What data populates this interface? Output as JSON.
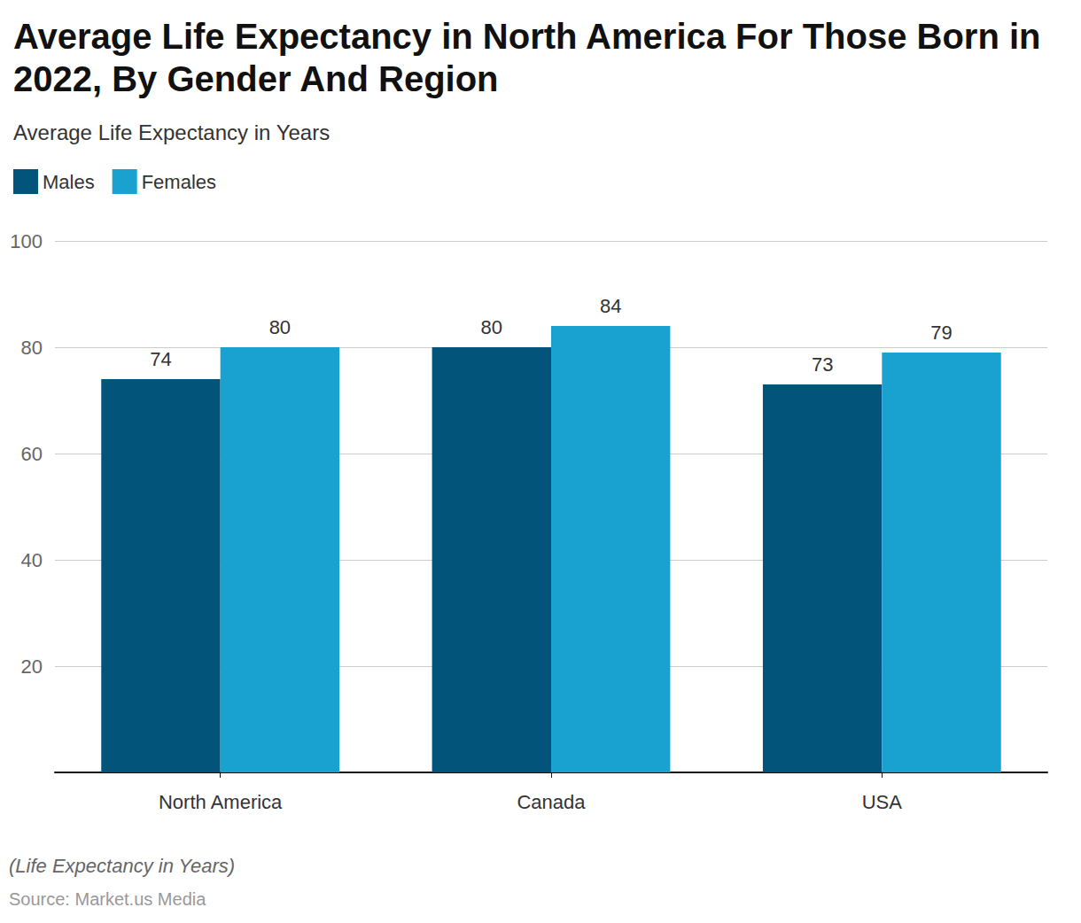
{
  "chart_data": {
    "type": "bar",
    "title": "Average Life Expectancy in North America For Those Born in 2022, By Gender And Region",
    "subtitle": "Average Life Expectancy in Years",
    "caption": "(Life Expectancy in Years)",
    "source": "Source: Market.us Media",
    "categories": [
      "North America",
      "Canada",
      "USA"
    ],
    "series": [
      {
        "name": "Males",
        "color": "#02547a",
        "values": [
          74,
          80,
          73
        ]
      },
      {
        "name": "Females",
        "color": "#19a2cf",
        "values": [
          80,
          84,
          79
        ]
      }
    ],
    "ylim": [
      0,
      100
    ],
    "yticks": [
      20,
      40,
      60,
      80,
      100
    ],
    "grid": true,
    "legend": "top-left",
    "data_labels": true
  }
}
